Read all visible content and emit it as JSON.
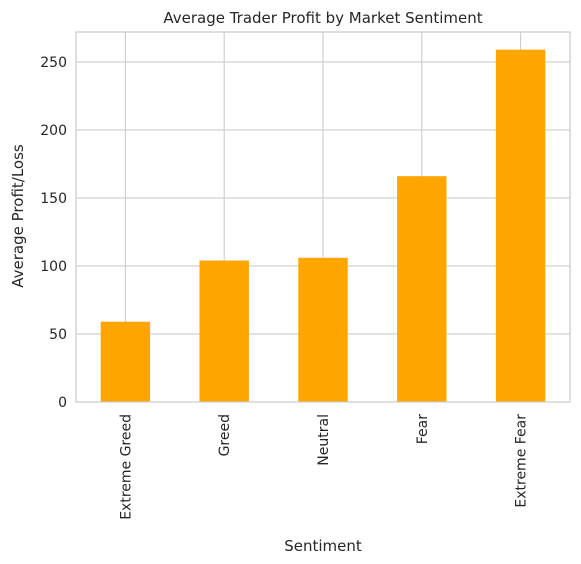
{
  "chart_data": {
    "type": "bar",
    "title": "Average Trader Profit by Market Sentiment",
    "xlabel": "Sentiment",
    "ylabel": "Average Profit/Loss",
    "categories": [
      "Extreme Greed",
      "Greed",
      "Neutral",
      "Fear",
      "Extreme Fear"
    ],
    "values": [
      59,
      104,
      106,
      166,
      259
    ],
    "ylim": [
      0,
      272
    ],
    "yticks": [
      0,
      50,
      100,
      150,
      200,
      250
    ],
    "grid": true,
    "bar_color": "#ffa500",
    "grid_color": "#cccccc",
    "axes_edge_color": "#cccccc",
    "text_color": "#262626"
  }
}
